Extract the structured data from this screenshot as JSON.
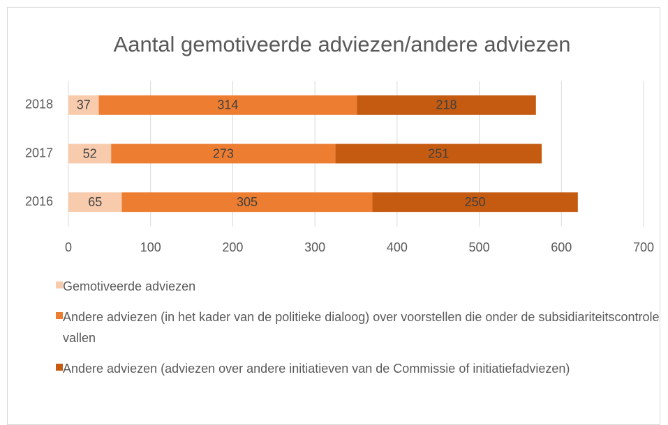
{
  "chart_data": {
    "type": "stacked_bar_horizontal",
    "title": "Aantal gemotiveerde adviezen/andere adviezen",
    "categories": [
      "2018",
      "2017",
      "2016"
    ],
    "series": [
      {
        "name": "Gemotiveerde adviezen",
        "color": "#f8cbad",
        "values": [
          37,
          52,
          65
        ]
      },
      {
        "name": "Andere adviezen (in het kader van de politieke dialoog) over voorstellen die onder de subsidiariteitscontrole vallen",
        "color": "#ed7d31",
        "values": [
          314,
          273,
          305
        ]
      },
      {
        "name": "Andere adviezen (adviezen over andere initiatieven van de Commissie of initiatiefadviezen)",
        "color": "#c55a11",
        "values": [
          218,
          251,
          250
        ]
      }
    ],
    "xlim": [
      0,
      700
    ],
    "xticks": [
      0,
      100,
      200,
      300,
      400,
      500,
      600,
      700
    ],
    "grid": true,
    "legend": "bottom"
  }
}
